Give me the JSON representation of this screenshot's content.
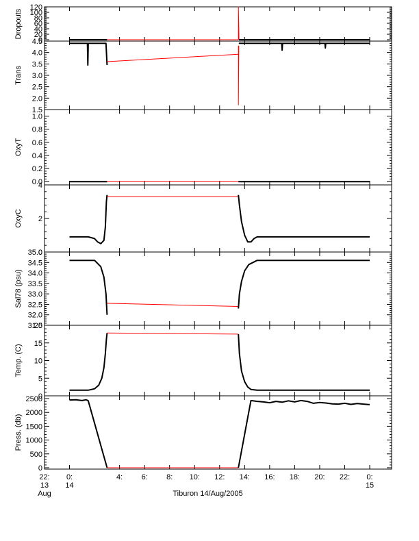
{
  "caption": "Tiburon 14/Aug/2005",
  "colors": {
    "data": "#000000",
    "gap": "#ff0000",
    "axis": "#000000",
    "background": "#ffffff"
  },
  "chart_data": {
    "type": "line",
    "xlabel": "Tiburon 14/Aug/2005",
    "xlim": [
      "2005-08-13T22:00",
      "2005-08-15T01:45"
    ],
    "x_ticks": [
      {
        "at": "2005-08-13T22:00",
        "line1": "22:",
        "line2": "13",
        "line3": "Aug"
      },
      {
        "at": "2005-08-14T00:00",
        "line1": "0:",
        "line2": "14",
        "line3": ""
      },
      {
        "at": "2005-08-14T04:00",
        "line1": "4:",
        "line2": "",
        "line3": ""
      },
      {
        "at": "2005-08-14T06:00",
        "line1": "6:",
        "line2": "",
        "line3": ""
      },
      {
        "at": "2005-08-14T08:00",
        "line1": "8:",
        "line2": "",
        "line3": ""
      },
      {
        "at": "2005-08-14T10:00",
        "line1": "10:",
        "line2": "",
        "line3": ""
      },
      {
        "at": "2005-08-14T12:00",
        "line1": "12:",
        "line2": "",
        "line3": ""
      },
      {
        "at": "2005-08-14T14:00",
        "line1": "14:",
        "line2": "",
        "line3": ""
      },
      {
        "at": "2005-08-14T16:00",
        "line1": "16:",
        "line2": "",
        "line3": ""
      },
      {
        "at": "2005-08-14T18:00",
        "line1": "18:",
        "line2": "",
        "line3": ""
      },
      {
        "at": "2005-08-14T20:00",
        "line1": "20:",
        "line2": "",
        "line3": ""
      },
      {
        "at": "2005-08-14T22:00",
        "line1": "22:",
        "line2": "",
        "line3": ""
      },
      {
        "at": "2005-08-15T00:00",
        "line1": "0:",
        "line2": "15",
        "line3": ""
      }
    ],
    "panels": [
      {
        "ylabel": "Dropouts",
        "ylim": [
          -5,
          120
        ],
        "yticks": [
          0,
          20,
          40,
          60,
          80,
          100,
          120
        ],
        "ytick_labels": [
          "0",
          "20",
          "40",
          "60",
          "80",
          "100",
          "120"
        ],
        "series": [
          {
            "style": "data",
            "points": [
              [
                "2005-08-14T00:00",
                0
              ],
              [
                "2005-08-14T03:00",
                0
              ]
            ]
          },
          {
            "style": "gap",
            "points": [
              [
                "2005-08-14T03:00",
                0
              ],
              [
                "2005-08-14T13:30",
                0
              ]
            ]
          },
          {
            "style": "gap",
            "points": [
              [
                "2005-08-14T13:30",
                0
              ],
              [
                "2005-08-14T13:30",
                120
              ],
              [
                "2005-08-14T13:33",
                0
              ]
            ]
          },
          {
            "style": "data",
            "points": [
              [
                "2005-08-14T13:33",
                0
              ],
              [
                "2005-08-15T00:00",
                0
              ]
            ]
          }
        ]
      },
      {
        "ylabel": "Trans",
        "ylim": [
          1.5,
          4.5
        ],
        "yticks": [
          1.5,
          2.0,
          2.5,
          3.0,
          3.5,
          4.0,
          4.5
        ],
        "ytick_labels": [
          "1.5",
          "2.0",
          "2.5",
          "3.0",
          "3.5",
          "4.0",
          "4.5"
        ],
        "series": [
          {
            "style": "data",
            "points": [
              [
                "2005-08-14T00:00",
                4.4
              ],
              [
                "2005-08-14T01:26",
                4.4
              ],
              [
                "2005-08-14T01:28",
                3.45
              ],
              [
                "2005-08-14T01:30",
                4.4
              ],
              [
                "2005-08-14T02:55",
                4.4
              ],
              [
                "2005-08-14T03:00",
                3.45
              ]
            ]
          },
          {
            "style": "gap",
            "points": [
              [
                "2005-08-14T03:00",
                3.6
              ],
              [
                "2005-08-14T13:30",
                3.92
              ]
            ]
          },
          {
            "style": "gap",
            "points": [
              [
                "2005-08-14T13:30",
                4.3
              ],
              [
                "2005-08-14T13:30",
                1.7
              ],
              [
                "2005-08-14T13:32",
                4.3
              ]
            ]
          },
          {
            "style": "data",
            "points": [
              [
                "2005-08-14T13:32",
                4.4
              ],
              [
                "2005-08-14T16:58",
                4.4
              ],
              [
                "2005-08-14T17:00",
                4.1
              ],
              [
                "2005-08-14T17:02",
                4.4
              ],
              [
                "2005-08-14T20:25",
                4.4
              ],
              [
                "2005-08-14T20:27",
                4.2
              ],
              [
                "2005-08-14T20:29",
                4.4
              ],
              [
                "2005-08-15T00:00",
                4.4
              ]
            ]
          }
        ]
      },
      {
        "ylabel": "OxyT",
        "ylim": [
          -0.05,
          1.1
        ],
        "yticks": [
          0.0,
          0.2,
          0.4,
          0.6,
          0.8,
          1.0
        ],
        "ytick_labels": [
          "0.0",
          "0.2",
          "0.4",
          "0.6",
          "0.8",
          "1.0"
        ],
        "series": [
          {
            "style": "data",
            "points": [
              [
                "2005-08-14T00:00",
                0
              ],
              [
                "2005-08-14T03:00",
                0
              ]
            ]
          },
          {
            "style": "gap",
            "points": [
              [
                "2005-08-14T03:00",
                0
              ],
              [
                "2005-08-14T13:30",
                0
              ]
            ]
          },
          {
            "style": "data",
            "points": [
              [
                "2005-08-14T13:30",
                0
              ],
              [
                "2005-08-15T00:00",
                0
              ]
            ]
          }
        ]
      },
      {
        "ylabel": "OxyC",
        "ylim": [
          0,
          4
        ],
        "yticks": [
          0,
          2,
          4
        ],
        "ytick_labels": [
          "0",
          "2",
          "4"
        ],
        "series": [
          {
            "style": "data",
            "points": [
              [
                "2005-08-14T00:00",
                0.9
              ],
              [
                "2005-08-14T01:30",
                0.9
              ],
              [
                "2005-08-14T02:00",
                0.8
              ],
              [
                "2005-08-14T02:15",
                0.6
              ],
              [
                "2005-08-14T02:30",
                0.5
              ],
              [
                "2005-08-14T02:45",
                0.7
              ],
              [
                "2005-08-14T02:52",
                1.5
              ],
              [
                "2005-08-14T02:57",
                3.0
              ],
              [
                "2005-08-14T03:00",
                3.4
              ]
            ]
          },
          {
            "style": "gap",
            "points": [
              [
                "2005-08-14T03:00",
                3.3
              ],
              [
                "2005-08-14T13:30",
                3.3
              ]
            ]
          },
          {
            "style": "data",
            "points": [
              [
                "2005-08-14T13:30",
                3.4
              ],
              [
                "2005-08-14T13:35",
                2.8
              ],
              [
                "2005-08-14T13:45",
                1.8
              ],
              [
                "2005-08-14T14:00",
                1.0
              ],
              [
                "2005-08-14T14:15",
                0.6
              ],
              [
                "2005-08-14T14:30",
                0.6
              ],
              [
                "2005-08-14T14:45",
                0.8
              ],
              [
                "2005-08-14T15:00",
                0.9
              ],
              [
                "2005-08-15T00:00",
                0.9
              ]
            ]
          }
        ]
      },
      {
        "ylabel": "Sal78 (psu)",
        "ylim": [
          31.5,
          35.0
        ],
        "yticks": [
          31.5,
          32.0,
          32.5,
          33.0,
          33.5,
          34.0,
          34.5,
          35.0
        ],
        "ytick_labels": [
          "31.5",
          "32.0",
          "32.5",
          "33.0",
          "33.5",
          "34.0",
          "34.5",
          "35.0"
        ],
        "series": [
          {
            "style": "data",
            "points": [
              [
                "2005-08-14T00:00",
                34.6
              ],
              [
                "2005-08-14T02:00",
                34.6
              ],
              [
                "2005-08-14T02:30",
                34.3
              ],
              [
                "2005-08-14T02:45",
                33.8
              ],
              [
                "2005-08-14T02:55",
                33.0
              ],
              [
                "2005-08-14T03:00",
                32.0
              ]
            ]
          },
          {
            "style": "gap",
            "points": [
              [
                "2005-08-14T03:00",
                32.55
              ],
              [
                "2005-08-14T13:30",
                32.4
              ]
            ]
          },
          {
            "style": "data",
            "points": [
              [
                "2005-08-14T13:30",
                32.3
              ],
              [
                "2005-08-14T13:35",
                33.0
              ],
              [
                "2005-08-14T13:45",
                33.6
              ],
              [
                "2005-08-14T14:00",
                34.1
              ],
              [
                "2005-08-14T14:20",
                34.4
              ],
              [
                "2005-08-14T15:00",
                34.6
              ],
              [
                "2005-08-15T00:00",
                34.6
              ]
            ]
          }
        ]
      },
      {
        "ylabel": "Temp. (C)",
        "ylim": [
          0,
          20
        ],
        "yticks": [
          0,
          5,
          10,
          15,
          20
        ],
        "ytick_labels": [
          "0",
          "5",
          "10",
          "15",
          "20"
        ],
        "series": [
          {
            "style": "data",
            "points": [
              [
                "2005-08-14T00:00",
                1.6
              ],
              [
                "2005-08-14T01:30",
                1.6
              ],
              [
                "2005-08-14T02:00",
                2.0
              ],
              [
                "2005-08-14T02:20",
                3.0
              ],
              [
                "2005-08-14T02:35",
                5.0
              ],
              [
                "2005-08-14T02:45",
                8.0
              ],
              [
                "2005-08-14T02:52",
                12.0
              ],
              [
                "2005-08-14T02:57",
                16.0
              ],
              [
                "2005-08-14T03:00",
                17.8
              ]
            ]
          },
          {
            "style": "gap",
            "points": [
              [
                "2005-08-14T03:00",
                17.8
              ],
              [
                "2005-08-14T13:30",
                17.5
              ]
            ]
          },
          {
            "style": "data",
            "points": [
              [
                "2005-08-14T13:30",
                17.5
              ],
              [
                "2005-08-14T13:35",
                12.0
              ],
              [
                "2005-08-14T13:45",
                7.0
              ],
              [
                "2005-08-14T14:00",
                4.0
              ],
              [
                "2005-08-14T14:15",
                2.5
              ],
              [
                "2005-08-14T14:30",
                1.8
              ],
              [
                "2005-08-14T15:00",
                1.6
              ],
              [
                "2005-08-15T00:00",
                1.6
              ]
            ]
          }
        ]
      },
      {
        "ylabel": "Press. (db)",
        "ylim": [
          -50,
          2600
        ],
        "yticks": [
          0,
          500,
          1000,
          1500,
          2000,
          2500
        ],
        "ytick_labels": [
          "0",
          "500",
          "1000",
          "1500",
          "2000",
          "2500"
        ],
        "series": [
          {
            "style": "data",
            "points": [
              [
                "2005-08-14T00:00",
                2450
              ],
              [
                "2005-08-14T00:30",
                2460
              ],
              [
                "2005-08-14T01:00",
                2430
              ],
              [
                "2005-08-14T01:20",
                2460
              ],
              [
                "2005-08-14T01:30",
                2420
              ],
              [
                "2005-08-14T03:00",
                0
              ]
            ]
          },
          {
            "style": "gap",
            "points": [
              [
                "2005-08-14T03:00",
                0
              ],
              [
                "2005-08-14T13:30",
                0
              ]
            ]
          },
          {
            "style": "data",
            "points": [
              [
                "2005-08-14T13:30",
                0
              ],
              [
                "2005-08-14T14:30",
                2430
              ],
              [
                "2005-08-14T15:00",
                2400
              ],
              [
                "2005-08-14T15:30",
                2380
              ],
              [
                "2005-08-14T16:00",
                2350
              ],
              [
                "2005-08-14T16:30",
                2400
              ],
              [
                "2005-08-14T17:00",
                2370
              ],
              [
                "2005-08-14T17:30",
                2420
              ],
              [
                "2005-08-14T18:00",
                2380
              ],
              [
                "2005-08-14T18:30",
                2430
              ],
              [
                "2005-08-14T19:00",
                2400
              ],
              [
                "2005-08-14T19:30",
                2330
              ],
              [
                "2005-08-14T20:00",
                2360
              ],
              [
                "2005-08-14T20:30",
                2340
              ],
              [
                "2005-08-14T21:00",
                2310
              ],
              [
                "2005-08-14T21:30",
                2300
              ],
              [
                "2005-08-14T22:00",
                2330
              ],
              [
                "2005-08-14T22:30",
                2290
              ],
              [
                "2005-08-14T23:00",
                2320
              ],
              [
                "2005-08-14T23:30",
                2300
              ],
              [
                "2005-08-15T00:00",
                2280
              ]
            ]
          }
        ]
      }
    ]
  }
}
